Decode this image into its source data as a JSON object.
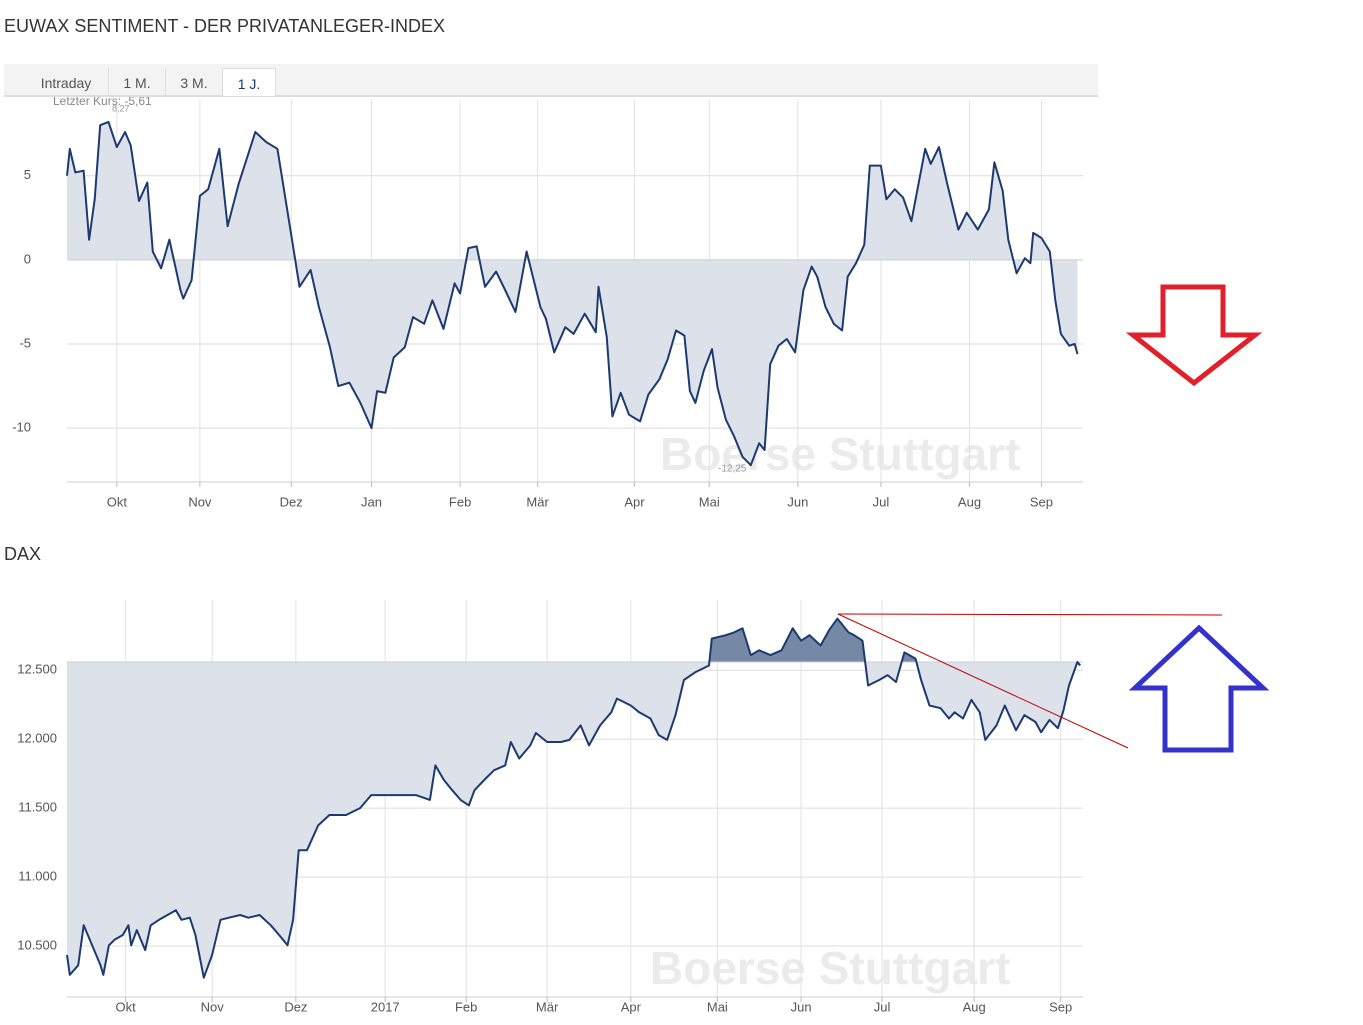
{
  "tabs": [
    "Intraday",
    "1 M.",
    "3 M.",
    "1 J."
  ],
  "watermark": "Boerse Stuttgart",
  "chart_data": [
    {
      "type": "area",
      "title": "EUWAX SENTIMENT - DER PRIVATANLEGER-INDEX",
      "annotations": [
        "Letzter Kurs: -5,61",
        "8,27",
        "-12,25"
      ],
      "x": [
        0,
        1,
        3,
        6,
        8,
        10,
        12,
        15,
        18,
        21,
        23,
        26,
        29,
        31,
        34,
        37,
        41,
        42,
        45,
        48,
        51,
        55,
        58,
        62,
        68,
        72,
        76,
        81,
        84,
        88,
        91,
        95,
        98,
        102,
        106,
        110,
        112,
        115,
        118,
        122,
        125,
        129,
        132,
        136,
        140,
        142,
        145,
        148,
        151,
        155,
        158,
        162,
        166,
        171,
        173,
        176,
        180,
        183,
        187,
        191,
        192,
        195,
        197,
        200,
        203,
        207,
        210,
        214,
        217,
        220,
        223,
        225,
        227,
        230,
        233,
        235,
        238,
        241,
        244,
        247,
        250,
        252,
        254,
        257,
        260,
        263,
        266,
        269,
        271,
        274,
        277,
        280,
        282,
        285,
        288,
        290,
        294,
        296,
        299,
        302,
        305,
        310,
        312,
        315,
        318,
        322,
        325,
        329,
        333,
        335,
        338,
        340,
        343,
        346,
        348,
        349,
        352,
        355,
        357,
        359,
        362,
        364,
        365
      ],
      "series": [
        {
          "color": "#1c3a6e",
          "fill": "#dde2ea",
          "values": [
            5,
            6.6,
            5.2,
            5.3,
            1.2,
            3.6,
            8.0,
            8.2,
            6.7,
            7.6,
            6.8,
            3.5,
            4.6,
            0.5,
            -0.5,
            1.2,
            -1.8,
            -2.3,
            -1.2,
            3.8,
            4.2,
            6.6,
            2.0,
            4.5,
            7.6,
            7.0,
            6.6,
            1.5,
            -1.6,
            -0.6,
            -2.8,
            -5.2,
            -7.5,
            -7.3,
            -8.5,
            -10.0,
            -7.8,
            -7.9,
            -5.8,
            -5.2,
            -3.4,
            -3.8,
            -2.4,
            -4.1,
            -1.4,
            -2.0,
            0.7,
            0.8,
            -1.6,
            -0.7,
            -1.7,
            -3.1,
            0.5,
            -2.8,
            -3.5,
            -5.5,
            -4.0,
            -4.4,
            -3.2,
            -4.3,
            -1.6,
            -4.6,
            -9.3,
            -7.9,
            -9.2,
            -9.6,
            -8.0,
            -7.1,
            -5.9,
            -4.2,
            -4.5,
            -7.8,
            -8.5,
            -6.6,
            -5.3,
            -7.6,
            -9.5,
            -10.5,
            -11.7,
            -12.2,
            -10.9,
            -11.3,
            -6.2,
            -5.1,
            -4.7,
            -5.5,
            -1.8,
            -0.4,
            -1.0,
            -2.8,
            -3.8,
            -4.2,
            -1.0,
            -0.2,
            0.9,
            5.6,
            5.6,
            3.6,
            4.2,
            3.7,
            2.3,
            6.6,
            5.7,
            6.7,
            4.5,
            1.8,
            2.8,
            1.8,
            3.0,
            5.8,
            4.1,
            1.2,
            -0.8,
            0.1,
            -0.2,
            1.6,
            1.3,
            0.5,
            -2.4,
            -4.4,
            -5.1,
            -5.0,
            -5.6
          ]
        }
      ],
      "baseline": 0,
      "xlim": [
        0,
        367
      ],
      "xticks": [
        {
          "value": 18,
          "label": "Okt"
        },
        {
          "value": 48,
          "label": "Nov"
        },
        {
          "value": 81,
          "label": "Dez"
        },
        {
          "value": 110,
          "label": "Jan"
        },
        {
          "value": 142,
          "label": "Feb"
        },
        {
          "value": 170,
          "label": "Mär"
        },
        {
          "value": 205,
          "label": "Apr"
        },
        {
          "value": 232,
          "label": "Mai"
        },
        {
          "value": 264,
          "label": "Jun"
        },
        {
          "value": 294,
          "label": "Jul"
        },
        {
          "value": 326,
          "label": "Aug"
        },
        {
          "value": 352,
          "label": "Sep"
        }
      ],
      "ylim": [
        -13.2,
        9.5
      ],
      "yticks": [
        5,
        0,
        -5,
        -10
      ],
      "grid": true
    },
    {
      "type": "area",
      "title": "DAX",
      "x": [
        0,
        1,
        4,
        6,
        9,
        12,
        13,
        15,
        17,
        20,
        22,
        23,
        25,
        28,
        30,
        33,
        36,
        39,
        41,
        44,
        46,
        49,
        52,
        55,
        58,
        62,
        65,
        69,
        73,
        76,
        79,
        81,
        83,
        86,
        90,
        94,
        100,
        105,
        109,
        114,
        119,
        125,
        130,
        132,
        135,
        138,
        141,
        144,
        146,
        150,
        153,
        157,
        159,
        162,
        166,
        168,
        172,
        177,
        180,
        184,
        187,
        191,
        195,
        197,
        202,
        205,
        209,
        212,
        215,
        218,
        221,
        225,
        230,
        231,
        236,
        239,
        242,
        245,
        248,
        252,
        256,
        260,
        263,
        266,
        270,
        273,
        276,
        280,
        282,
        285,
        287,
        291,
        294,
        297,
        300,
        304,
        306,
        309,
        313,
        316,
        318,
        321,
        324,
        327,
        329,
        333,
        336,
        340,
        343,
        347,
        349,
        352,
        355,
        357,
        359,
        362,
        363
      ],
      "series": [
        {
          "color": "#1c3a6e",
          "fill": "#dde2ea",
          "fill_above": "#7588a6",
          "values": [
            10435,
            10290,
            10360,
            10650,
            10505,
            10360,
            10290,
            10505,
            10545,
            10580,
            10650,
            10505,
            10615,
            10470,
            10650,
            10690,
            10725,
            10760,
            10690,
            10705,
            10580,
            10270,
            10435,
            10690,
            10705,
            10725,
            10705,
            10725,
            10650,
            10580,
            10505,
            10690,
            11195,
            11195,
            11375,
            11450,
            11450,
            11500,
            11595,
            11595,
            11595,
            11595,
            11560,
            11810,
            11705,
            11630,
            11560,
            11520,
            11630,
            11715,
            11775,
            11810,
            11980,
            11860,
            11955,
            12045,
            11980,
            11980,
            11995,
            12100,
            11955,
            12100,
            12195,
            12295,
            12245,
            12195,
            12150,
            12030,
            11995,
            12175,
            12430,
            12485,
            12535,
            12730,
            12755,
            12775,
            12805,
            12610,
            12645,
            12610,
            12645,
            12805,
            12715,
            12755,
            12680,
            12790,
            12875,
            12775,
            12755,
            12715,
            12390,
            12430,
            12465,
            12415,
            12630,
            12585,
            12430,
            12245,
            12225,
            12150,
            12195,
            12150,
            12285,
            12195,
            11995,
            12100,
            12245,
            12065,
            12175,
            12125,
            12050,
            12140,
            12080,
            12210,
            12390,
            12560,
            12535
          ]
        }
      ],
      "baseline": 12560,
      "xlim": [
        0,
        364
      ],
      "xticks": [
        {
          "value": 21,
          "label": "Okt"
        },
        {
          "value": 52,
          "label": "Nov"
        },
        {
          "value": 82,
          "label": "Dez"
        },
        {
          "value": 114,
          "label": "2017"
        },
        {
          "value": 143,
          "label": "Feb"
        },
        {
          "value": 172,
          "label": "Mär"
        },
        {
          "value": 202,
          "label": "Apr"
        },
        {
          "value": 233,
          "label": "Mai"
        },
        {
          "value": 263,
          "label": "Jun"
        },
        {
          "value": 292,
          "label": "Jul"
        },
        {
          "value": 325,
          "label": "Aug"
        },
        {
          "value": 356,
          "label": "Sep"
        }
      ],
      "ylim": [
        10130,
        13010
      ],
      "yticks": [
        {
          "value": 10500,
          "label": "10.500"
        },
        {
          "value": 11000,
          "label": "11.000"
        },
        {
          "value": 11500,
          "label": "11.500"
        },
        {
          "value": 12000,
          "label": "12.000"
        },
        {
          "value": 12500,
          "label": "12.500"
        }
      ],
      "grid": true
    }
  ]
}
